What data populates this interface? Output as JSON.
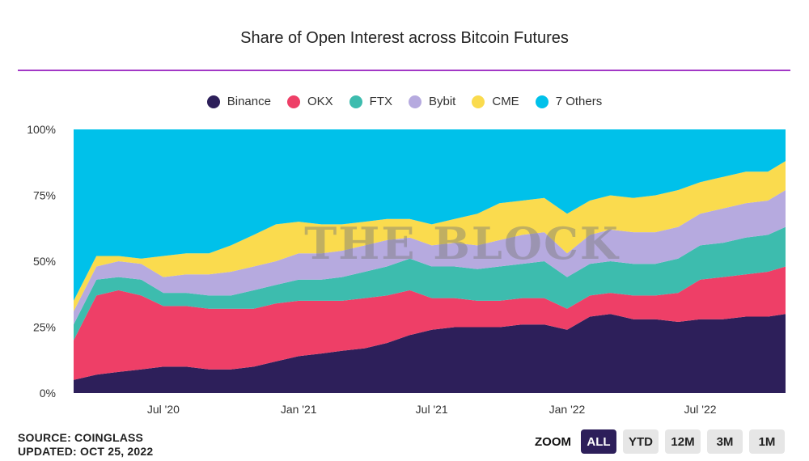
{
  "title": "Share of Open Interest across Bitcoin Futures",
  "watermark": "THE BLOCK",
  "source": "SOURCE: COINGLASS",
  "updated": "UPDATED: OCT 25, 2022",
  "zoom": {
    "label": "ZOOM",
    "buttons": [
      "ALL",
      "YTD",
      "12M",
      "3M",
      "1M"
    ],
    "active": "ALL"
  },
  "colors": {
    "accent_rule": "#a238c6",
    "Binance": "#2d1f5a",
    "OKX": "#ee3f67",
    "FTX": "#3dbcae",
    "Bybit": "#b6aadf",
    "CME": "#fadb4e",
    "7 Others": "#00c1ea"
  },
  "chart_data": {
    "type": "area",
    "stacked": true,
    "percent": true,
    "title": "Share of Open Interest across Bitcoin Futures",
    "ylim": [
      0,
      100
    ],
    "yticks": [
      "0%",
      "25%",
      "50%",
      "75%",
      "100%"
    ],
    "xticks": [
      "Jul '20",
      "Jan '21",
      "Jul '21",
      "Jan '22",
      "Jul '22"
    ],
    "legend_position": "top-center",
    "x": [
      "2020-03-01",
      "2020-04-01",
      "2020-05-01",
      "2020-06-01",
      "2020-07-01",
      "2020-08-01",
      "2020-09-01",
      "2020-10-01",
      "2020-11-01",
      "2020-12-01",
      "2021-01-01",
      "2021-02-01",
      "2021-03-01",
      "2021-04-01",
      "2021-05-01",
      "2021-06-01",
      "2021-07-01",
      "2021-08-01",
      "2021-09-01",
      "2021-10-01",
      "2021-11-01",
      "2021-12-01",
      "2022-01-01",
      "2022-02-01",
      "2022-03-01",
      "2022-04-01",
      "2022-05-01",
      "2022-06-01",
      "2022-07-01",
      "2022-08-01",
      "2022-09-01",
      "2022-10-01",
      "2022-10-25"
    ],
    "series": [
      {
        "name": "Binance",
        "values": [
          5,
          7,
          8,
          9,
          10,
          10,
          9,
          9,
          10,
          12,
          14,
          15,
          16,
          17,
          19,
          22,
          24,
          25,
          25,
          25,
          26,
          26,
          24,
          29,
          30,
          28,
          28,
          27,
          28,
          28,
          29,
          29,
          30
        ]
      },
      {
        "name": "OKX",
        "values": [
          15,
          30,
          31,
          28,
          23,
          23,
          23,
          23,
          22,
          22,
          21,
          20,
          19,
          19,
          18,
          17,
          12,
          11,
          10,
          10,
          10,
          10,
          8,
          8,
          8,
          9,
          9,
          11,
          15,
          16,
          16,
          17,
          18
        ]
      },
      {
        "name": "FTX",
        "values": [
          6,
          6,
          5,
          6,
          5,
          5,
          5,
          5,
          7,
          7,
          8,
          8,
          9,
          10,
          11,
          12,
          12,
          12,
          12,
          13,
          13,
          14,
          12,
          12,
          12,
          12,
          12,
          13,
          13,
          13,
          14,
          14,
          15
        ]
      },
      {
        "name": "Bybit",
        "values": [
          5,
          5,
          6,
          6,
          6,
          7,
          8,
          9,
          9,
          9,
          10,
          10,
          10,
          10,
          10,
          8,
          8,
          9,
          9,
          10,
          11,
          11,
          9,
          11,
          12,
          12,
          12,
          12,
          12,
          13,
          13,
          13,
          14
        ]
      },
      {
        "name": "CME",
        "values": [
          4,
          4,
          2,
          2,
          8,
          8,
          8,
          10,
          12,
          14,
          12,
          11,
          10,
          9,
          8,
          7,
          8,
          9,
          12,
          14,
          13,
          13,
          15,
          13,
          13,
          13,
          14,
          14,
          12,
          12,
          12,
          11,
          11
        ]
      },
      {
        "name": "7 Others",
        "values": [
          65,
          48,
          48,
          49,
          48,
          47,
          47,
          44,
          40,
          36,
          35,
          36,
          36,
          35,
          34,
          34,
          36,
          34,
          32,
          28,
          27,
          26,
          32,
          27,
          25,
          26,
          25,
          23,
          20,
          18,
          16,
          16,
          12
        ]
      }
    ]
  }
}
